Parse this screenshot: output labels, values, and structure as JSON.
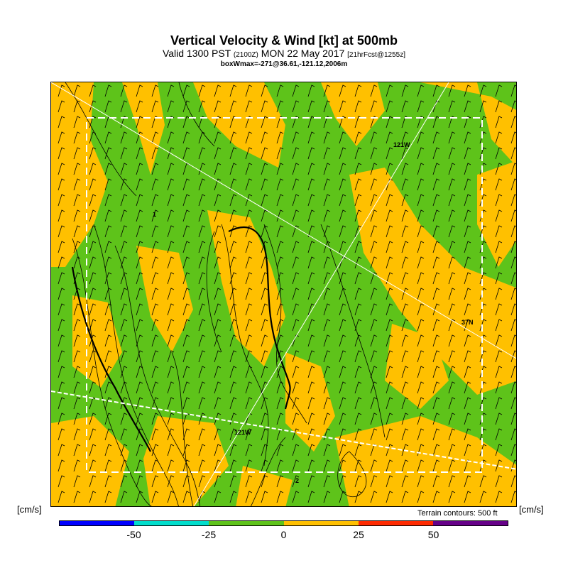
{
  "header": {
    "title": "Vertical Velocity & Wind [kt] at 500mb",
    "valid_prefix": "Valid 1300 PST",
    "valid_utc": "(2100Z)",
    "valid_date": "MON 22 May 2017",
    "forecast": "[21hrFcst@1255z]",
    "boxwmax": "boxWmax=-271@36.61,-121.12,2006m"
  },
  "map": {
    "labels": {
      "lon_top": "121W",
      "lon_bottom": "121W",
      "lat": "37N",
      "marker_a": "1",
      "marker_b": "2"
    },
    "colors": {
      "positive": "#ffc000",
      "neutral": "#5ec31a",
      "terrain_contour": "#000000",
      "barb": "#000000",
      "grid_line": "#ffffff"
    }
  },
  "colorbar": {
    "unit_left": "[cm/s]",
    "unit_right": "[cm/s]",
    "terrain_note": "Terrain contours: 500 ft",
    "colors": [
      "#0000ff",
      "#00ddcc",
      "#5ec31a",
      "#ffc000",
      "#ff2a00",
      "#660088"
    ],
    "ticks": [
      "-50",
      "-25",
      "0",
      "25",
      "50"
    ]
  }
}
